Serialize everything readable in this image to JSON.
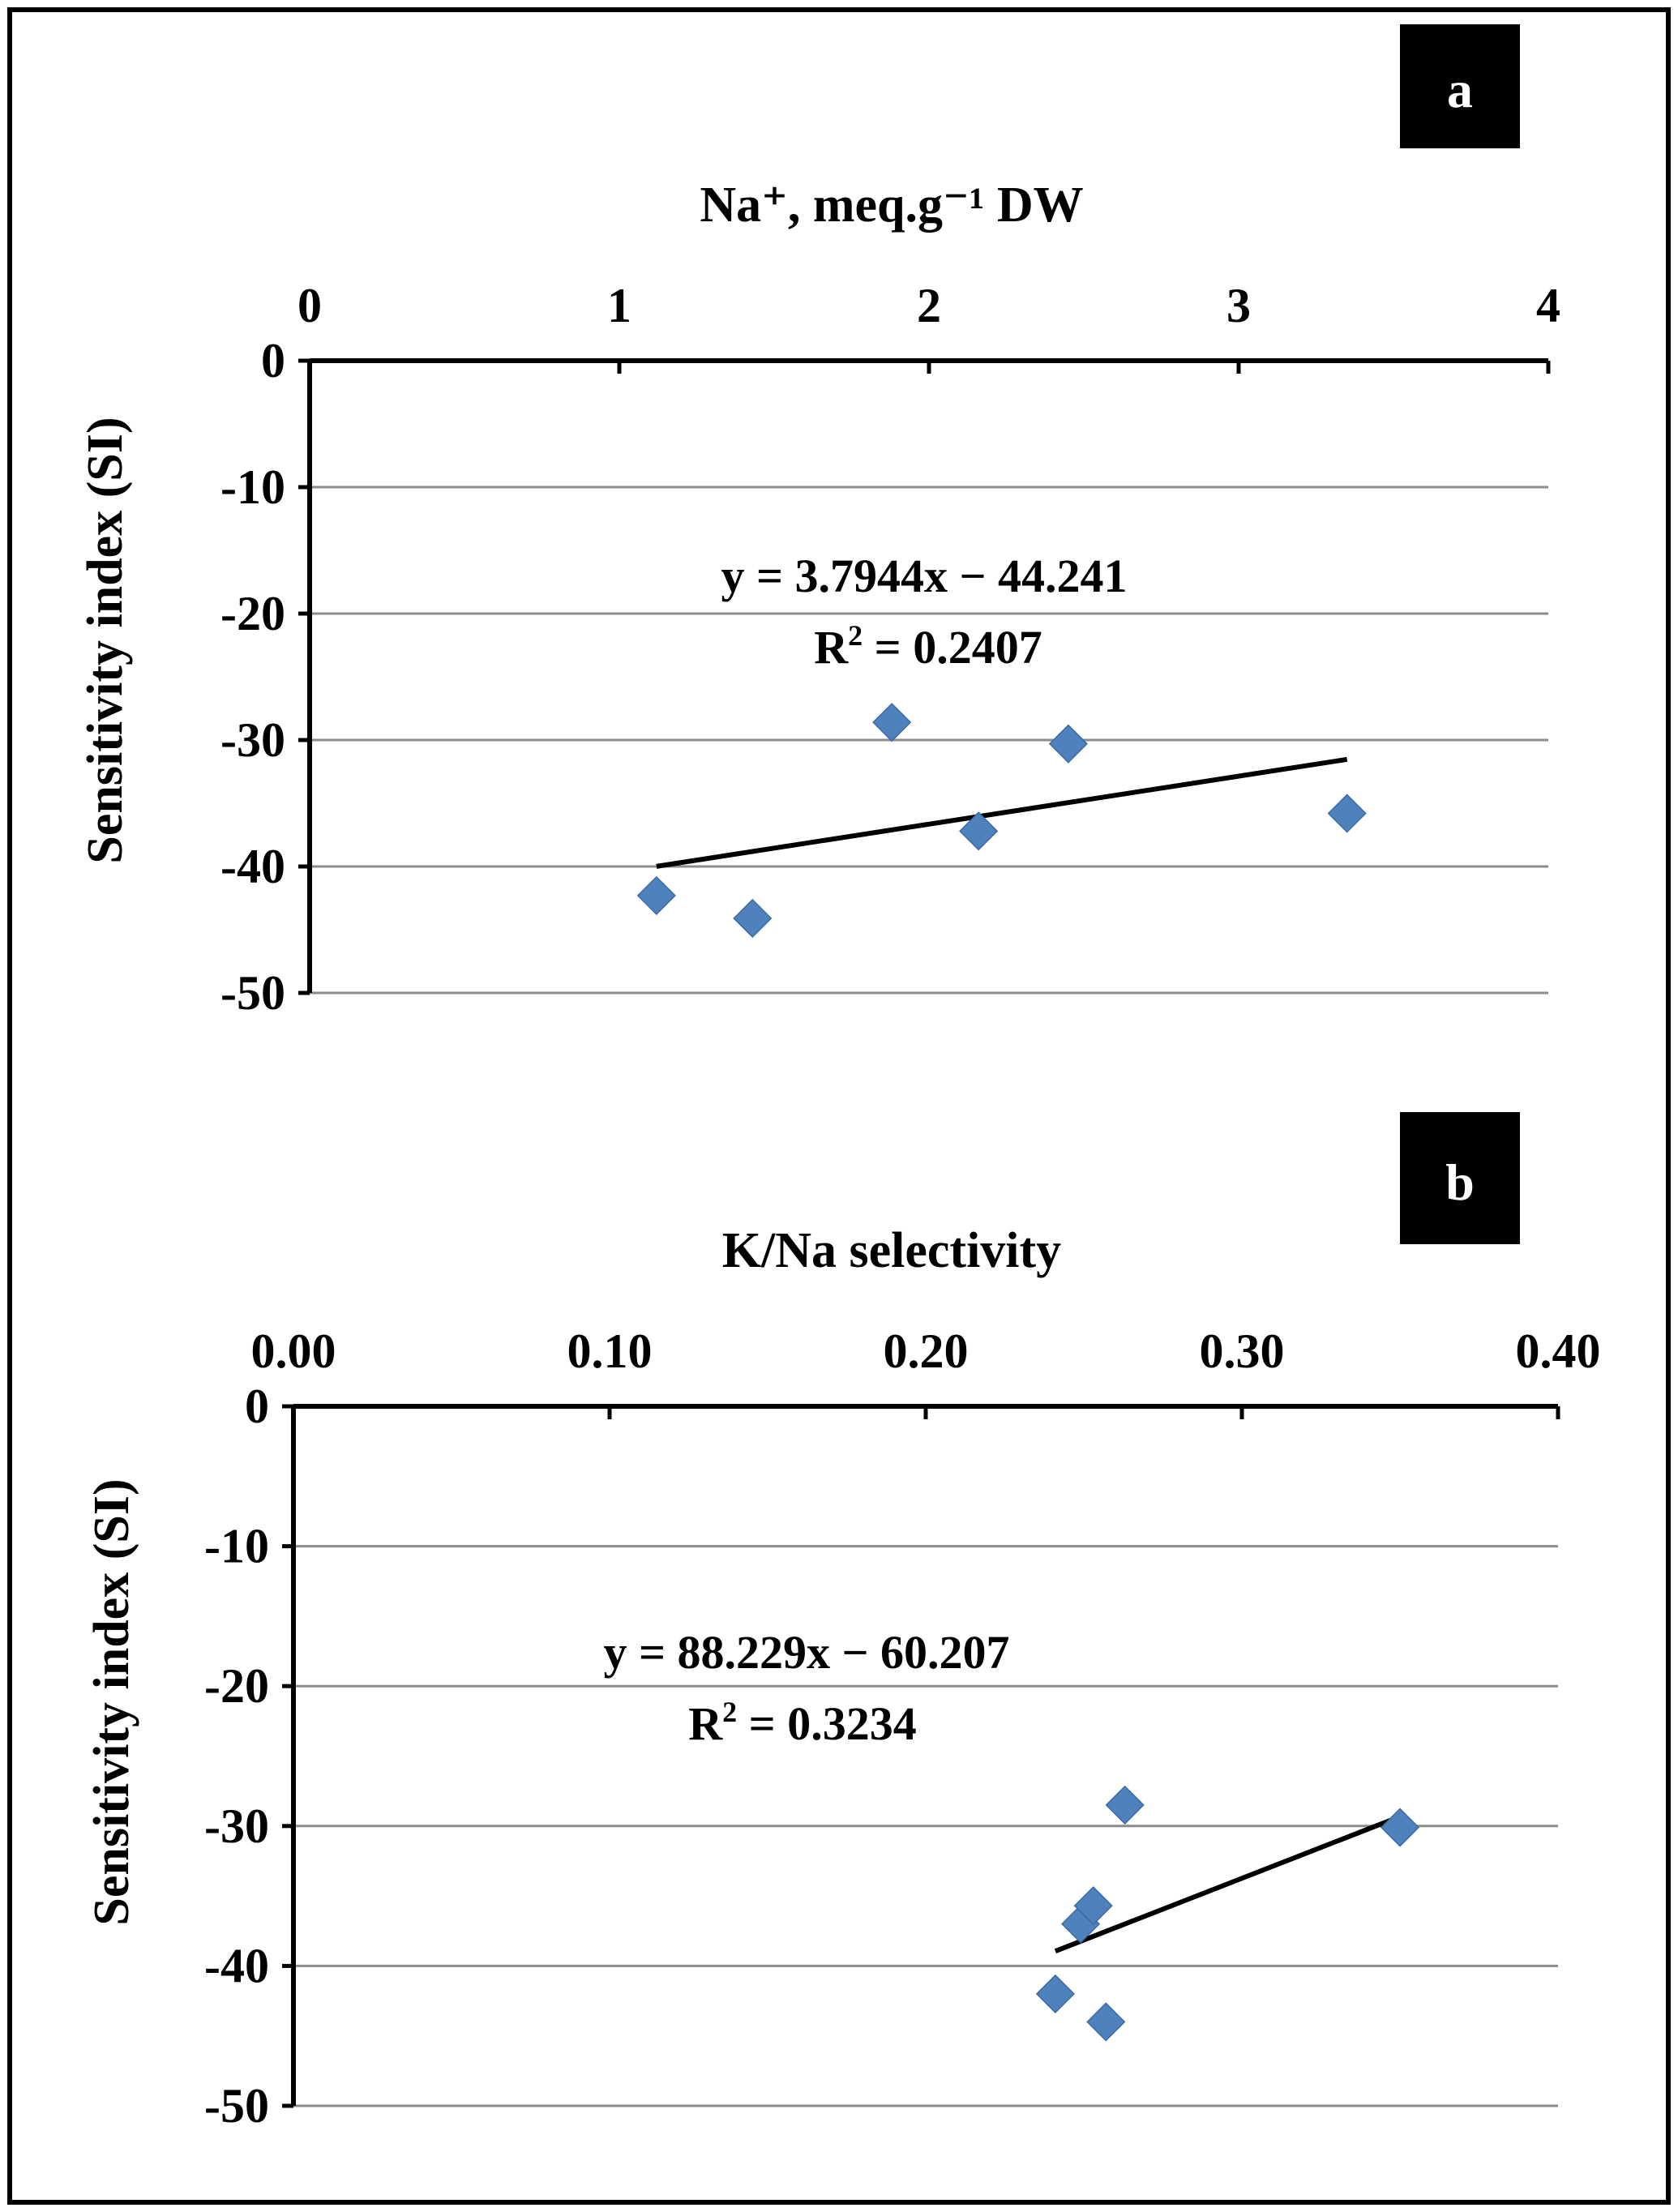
{
  "chart_data": [
    {
      "type": "scatter",
      "panel_label": "a",
      "title": "",
      "xlabel": "Na⁺, meq.g⁻¹  DW",
      "ylabel": "Sensitivity index (SI)",
      "xlim": [
        0,
        4
      ],
      "ylim": [
        -50,
        0
      ],
      "x_axis_position": "top",
      "x_ticks": [
        0,
        1,
        2,
        3,
        4
      ],
      "x_tick_labels": [
        "0",
        "1",
        "2",
        "3",
        "4"
      ],
      "y_ticks": [
        0,
        -10,
        -20,
        -30,
        -40,
        -50
      ],
      "y_tick_labels": [
        "0",
        "-10",
        "-20",
        "-30",
        "-40",
        "-50"
      ],
      "grid": true,
      "series": [
        {
          "name": "SI",
          "marker": "diamond",
          "color": "#4F81BD",
          "x": [
            1.12,
            1.43,
            1.88,
            2.16,
            2.45,
            3.35
          ],
          "y": [
            -42.3,
            -44.1,
            -28.6,
            -37.2,
            -30.3,
            -35.8
          ]
        }
      ],
      "trendline": {
        "slope": 3.7944,
        "intercept": -44.241,
        "x_range": [
          1.12,
          3.35
        ],
        "equation": "y = 3.7944x − 44.241",
        "r2_label": "R",
        "r2_sup": "2",
        "r2_value": " = 0.2407"
      }
    },
    {
      "type": "scatter",
      "panel_label": "b",
      "title": "",
      "xlabel": "K/Na  selectivity",
      "ylabel": "Sensitivity index (SI)",
      "xlim": [
        0,
        0.4
      ],
      "ylim": [
        -50,
        0
      ],
      "x_axis_position": "top",
      "x_ticks": [
        0,
        0.1,
        0.2,
        0.3,
        0.4
      ],
      "x_tick_labels": [
        "0.00",
        "0.10",
        "0.20",
        "0.30",
        "0.40"
      ],
      "y_ticks": [
        0,
        -10,
        -20,
        -30,
        -40,
        -50
      ],
      "y_tick_labels": [
        "0",
        "-10",
        "-20",
        "-30",
        "-40",
        "-50"
      ],
      "grid": true,
      "series": [
        {
          "name": "SI",
          "marker": "diamond",
          "color": "#4F81BD",
          "x": [
            0.241,
            0.249,
            0.253,
            0.257,
            0.263,
            0.35
          ],
          "y": [
            -42.0,
            -37.0,
            -35.7,
            -44.0,
            -28.5,
            -30.1
          ]
        }
      ],
      "trendline": {
        "slope": 88.229,
        "intercept": -60.207,
        "x_range": [
          0.241,
          0.35
        ],
        "equation": "y = 88.229x − 60.207",
        "r2_label": "R",
        "r2_sup": "2",
        "r2_value": " = 0.3234"
      }
    }
  ]
}
